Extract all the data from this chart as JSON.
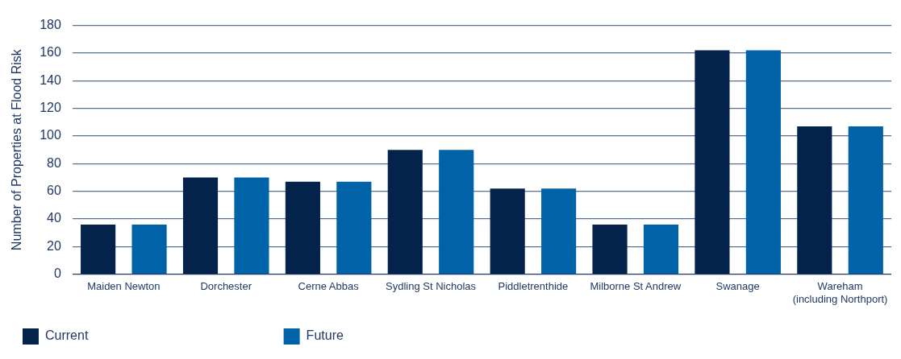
{
  "chart_data": {
    "type": "bar",
    "ylabel": "Number of Properties at Flood Risk",
    "categories": [
      "Maiden Newton",
      "Dorchester",
      "Cerne Abbas",
      "Sydling St Nicholas",
      "Piddletrenthide",
      "Milborne St Andrew",
      "Swanage",
      "Wareham (including Northport)"
    ],
    "series": [
      {
        "name": "Current",
        "color": "#03234b",
        "values": [
          36,
          70,
          67,
          90,
          62,
          36,
          162,
          107
        ]
      },
      {
        "name": "Future",
        "color": "#0063a8",
        "values": [
          36,
          70,
          67,
          90,
          62,
          36,
          162,
          107
        ]
      }
    ],
    "ylim": [
      0,
      180
    ],
    "yticks": [
      0,
      20,
      40,
      60,
      80,
      100,
      120,
      140,
      160,
      180
    ],
    "grid": "y",
    "legend": "bottom left"
  }
}
